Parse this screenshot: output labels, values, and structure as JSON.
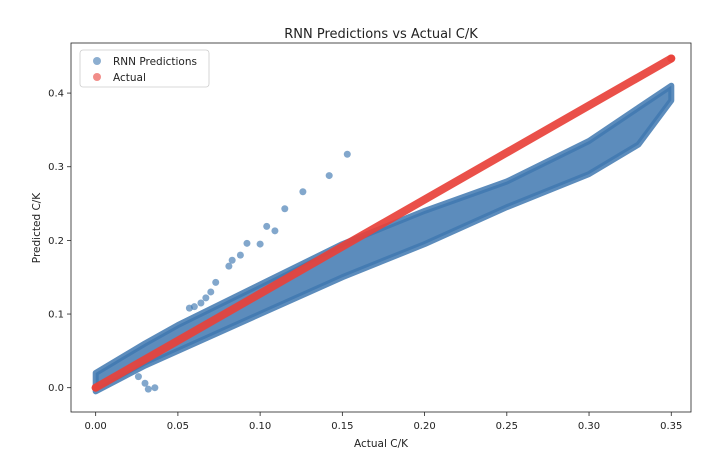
{
  "chart_data": {
    "type": "scatter",
    "title": "RNN Predictions vs Actual C/K",
    "xlabel": "Actual C/K",
    "ylabel": "Predicted C/K",
    "xlim": [
      -0.015,
      0.362
    ],
    "ylim": [
      -0.033,
      0.468
    ],
    "xticks": [
      "0.00",
      "0.05",
      "0.10",
      "0.15",
      "0.20",
      "0.25",
      "0.30",
      "0.35"
    ],
    "yticks": [
      "0.0",
      "0.1",
      "0.2",
      "0.3",
      "0.4"
    ],
    "grid": false,
    "legend_position": "top-left",
    "series": [
      {
        "name": "RNN Predictions",
        "color": "#3f78b0",
        "band": {
          "x": [
            0.0,
            0.03,
            0.05,
            0.1,
            0.15,
            0.2,
            0.25,
            0.3,
            0.33,
            0.35
          ],
          "y_low": [
            -0.005,
            0.03,
            0.05,
            0.1,
            0.15,
            0.195,
            0.245,
            0.29,
            0.33,
            0.39
          ],
          "y_high": [
            0.02,
            0.06,
            0.085,
            0.14,
            0.195,
            0.24,
            0.28,
            0.335,
            0.38,
            0.41
          ]
        },
        "outliers": [
          {
            "x": 0.153,
            "y": 0.317
          },
          {
            "x": 0.142,
            "y": 0.288
          },
          {
            "x": 0.126,
            "y": 0.266
          },
          {
            "x": 0.115,
            "y": 0.243
          },
          {
            "x": 0.104,
            "y": 0.219
          },
          {
            "x": 0.109,
            "y": 0.213
          },
          {
            "x": 0.092,
            "y": 0.196
          },
          {
            "x": 0.1,
            "y": 0.195
          },
          {
            "x": 0.088,
            "y": 0.18
          },
          {
            "x": 0.083,
            "y": 0.173
          },
          {
            "x": 0.081,
            "y": 0.165
          },
          {
            "x": 0.073,
            "y": 0.143
          },
          {
            "x": 0.07,
            "y": 0.13
          },
          {
            "x": 0.067,
            "y": 0.122
          },
          {
            "x": 0.036,
            "y": 0.0
          },
          {
            "x": 0.03,
            "y": 0.006
          },
          {
            "x": 0.026,
            "y": 0.015
          },
          {
            "x": 0.032,
            "y": -0.002
          },
          {
            "x": 0.057,
            "y": 0.108
          },
          {
            "x": 0.064,
            "y": 0.115
          },
          {
            "x": 0.06,
            "y": 0.11
          }
        ]
      },
      {
        "name": "Actual",
        "color": "#e8413a",
        "x": [
          0.0,
          0.35
        ],
        "y": [
          0.0,
          0.447
        ]
      }
    ]
  }
}
